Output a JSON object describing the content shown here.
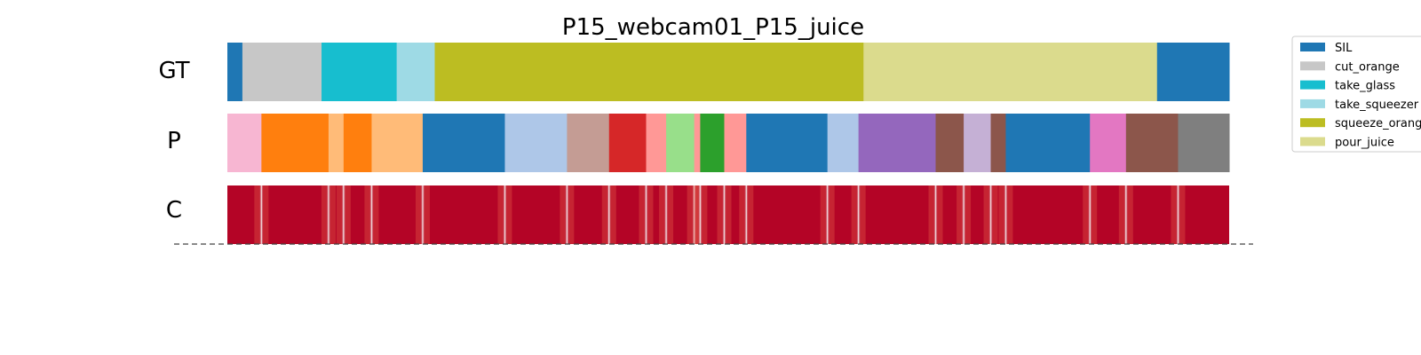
{
  "chart_data": {
    "type": "segmentation_timeline",
    "title": "P15_webcam01_P15_juice",
    "rows": [
      "GT",
      "P",
      "C"
    ],
    "x_range": [
      0,
      1000
    ],
    "legend_placement": "upper-right (outside plot, clipped)",
    "legend": [
      {
        "label": "SIL",
        "color": "#1f77b4"
      },
      {
        "label": "cut_orange",
        "color": "#c7c7c7"
      },
      {
        "label": "take_glass",
        "color": "#17becf"
      },
      {
        "label": "take_squeezer",
        "color": "#9edae5"
      },
      {
        "label": "squeeze_orange",
        "color": "#bcbd22"
      },
      {
        "label": "pour_juice",
        "color": "#dbdb8d"
      }
    ],
    "gt_segments": [
      {
        "start": 0,
        "end": 15,
        "label": "SIL"
      },
      {
        "start": 15,
        "end": 94,
        "label": "cut_orange"
      },
      {
        "start": 94,
        "end": 169,
        "label": "take_glass"
      },
      {
        "start": 169,
        "end": 207,
        "label": "take_squeezer"
      },
      {
        "start": 207,
        "end": 635,
        "label": "squeeze_orange"
      },
      {
        "start": 635,
        "end": 928,
        "label": "pour_juice"
      },
      {
        "start": 928,
        "end": 1000,
        "label": "SIL"
      }
    ],
    "p_segments": [
      {
        "start": 0,
        "end": 34,
        "color": "#f7b6d2"
      },
      {
        "start": 34,
        "end": 101,
        "color": "#ff7f0e"
      },
      {
        "start": 101,
        "end": 116,
        "color": "#ffbb78"
      },
      {
        "start": 116,
        "end": 144,
        "color": "#ff7f0e"
      },
      {
        "start": 144,
        "end": 195,
        "color": "#ffbb78"
      },
      {
        "start": 195,
        "end": 277,
        "color": "#1f77b4"
      },
      {
        "start": 277,
        "end": 339,
        "color": "#aec7e8"
      },
      {
        "start": 339,
        "end": 381,
        "color": "#c49c94"
      },
      {
        "start": 381,
        "end": 418,
        "color": "#d62728"
      },
      {
        "start": 418,
        "end": 438,
        "color": "#ff9896"
      },
      {
        "start": 438,
        "end": 466,
        "color": "#98df8a"
      },
      {
        "start": 466,
        "end": 472,
        "color": "#ff9896"
      },
      {
        "start": 472,
        "end": 496,
        "color": "#2ca02c"
      },
      {
        "start": 496,
        "end": 518,
        "color": "#ff9896"
      },
      {
        "start": 518,
        "end": 599,
        "color": "#1f77b4"
      },
      {
        "start": 599,
        "end": 630,
        "color": "#aec7e8"
      },
      {
        "start": 630,
        "end": 707,
        "color": "#9467bd"
      },
      {
        "start": 707,
        "end": 735,
        "color": "#8c564b"
      },
      {
        "start": 735,
        "end": 762,
        "color": "#c5b0d5"
      },
      {
        "start": 762,
        "end": 777,
        "color": "#8c564b"
      },
      {
        "start": 777,
        "end": 861,
        "color": "#1f77b4"
      },
      {
        "start": 861,
        "end": 897,
        "color": "#e377c2"
      },
      {
        "start": 897,
        "end": 949,
        "color": "#8c564b"
      },
      {
        "start": 949,
        "end": 1000,
        "color": "#7f7f7f"
      }
    ],
    "confidence_boundaries": [
      34,
      101,
      116,
      144,
      195,
      277,
      339,
      381,
      418,
      438,
      466,
      472,
      496,
      518,
      599,
      630,
      707,
      735,
      762,
      777,
      861,
      897,
      949
    ],
    "confidence_base_color": "#b40426",
    "confidence_low_color": "#f7f7f7"
  }
}
